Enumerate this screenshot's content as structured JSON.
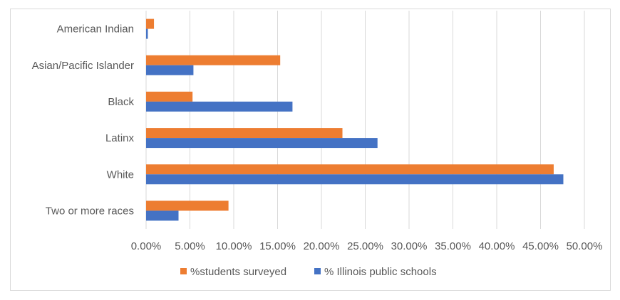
{
  "chart_data": {
    "type": "bar",
    "orientation": "horizontal",
    "categories": [
      "American Indian",
      "Asian/Pacific Islander",
      "Black",
      "Latinx",
      "White",
      "Two or more races"
    ],
    "series": [
      {
        "name": "%students surveyed",
        "color": "#ED7D31",
        "values": [
          0.9,
          15.3,
          5.3,
          22.4,
          46.5,
          9.4
        ]
      },
      {
        "name": "% Illinois public schools",
        "color": "#4472C4",
        "values": [
          0.2,
          5.4,
          16.7,
          26.4,
          47.6,
          3.7
        ]
      }
    ],
    "x_ticks": [
      "0.00%",
      "5.00%",
      "10.00%",
      "15.00%",
      "20.00%",
      "25.00%",
      "30.00%",
      "35.00%",
      "40.00%",
      "45.00%",
      "50.00%"
    ],
    "xlim": [
      0,
      50
    ],
    "grid": true,
    "legend_position": "bottom"
  }
}
